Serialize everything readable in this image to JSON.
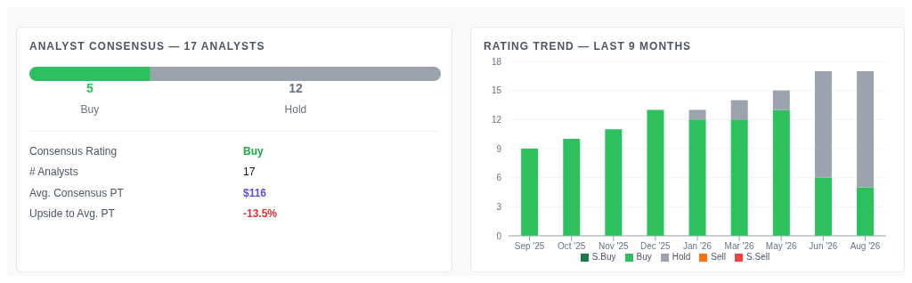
{
  "chart_data": [
    {
      "type": "bar",
      "title": "ANALYST CONSENSUS — 17 ANALYSTS",
      "orientation": "horizontal",
      "stacked": true,
      "data_labels": true,
      "categories": [
        null
      ],
      "series": [
        {
          "name": "Buy",
          "color": "#2ebf5f",
          "values": [
            5
          ]
        },
        {
          "name": "Hold",
          "color": "#9ca3af",
          "values": [
            12
          ]
        }
      ],
      "annotations": [
        "Consensus Rating",
        "Buy",
        "# Analysts",
        "17",
        "Avg. Consensus PT",
        "$116",
        "Upside to Avg. PT",
        "-13.5%"
      ]
    },
    {
      "type": "bar",
      "title": "RATING TREND — LAST 9 MONTHS",
      "stacked": true,
      "categories": [
        "Sep '25",
        "Oct '25",
        "Nov '25",
        "Dec '25",
        "Jan '26",
        "Mar '26",
        "May '26",
        "Jun '26",
        "Aug '26"
      ],
      "series": [
        {
          "name": "S.Buy",
          "color": "#1e7a46",
          "values": [
            0,
            0,
            0,
            0,
            0,
            0,
            0,
            0,
            0
          ]
        },
        {
          "name": "Buy",
          "color": "#2ebf5f",
          "values": [
            9,
            10,
            11,
            13,
            12,
            12,
            13,
            6,
            5
          ]
        },
        {
          "name": "Hold",
          "color": "#9ca3af",
          "values": [
            0,
            0,
            0,
            0,
            1,
            2,
            2,
            11,
            12
          ]
        },
        {
          "name": "Sell",
          "color": "#f97316",
          "values": [
            0,
            0,
            0,
            0,
            0,
            0,
            0,
            0,
            0
          ]
        },
        {
          "name": "S.Sell",
          "color": "#ef4444",
          "values": [
            0,
            0,
            0,
            0,
            0,
            0,
            0,
            0,
            0
          ]
        }
      ],
      "ylim": [
        0,
        18
      ],
      "yticks": [
        0,
        3,
        6,
        9,
        12,
        15,
        18
      ],
      "grid": "y",
      "legend": "bottom"
    }
  ]
}
